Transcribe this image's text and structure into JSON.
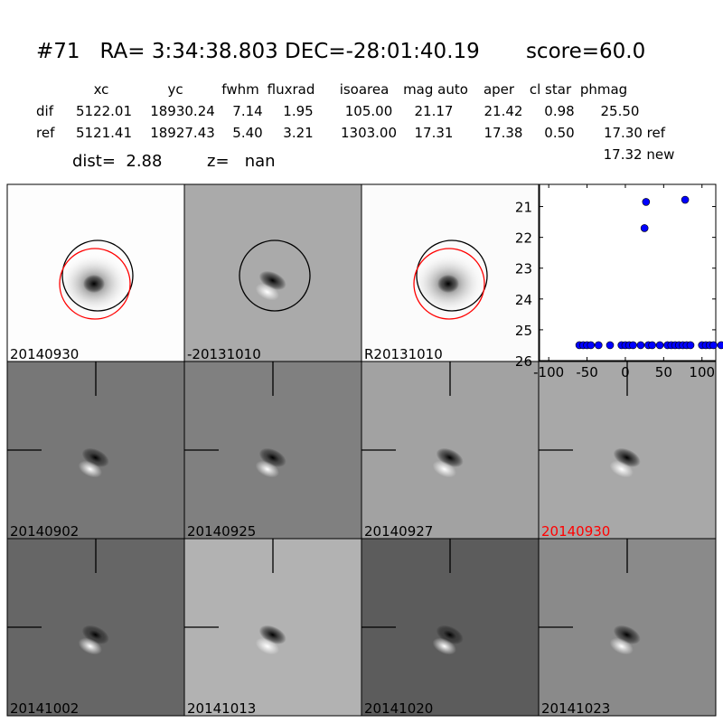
{
  "header": {
    "title": "#71   RA= 3:34:38.803 DEC=-28:01:40.19       score=60.0",
    "columns": [
      "xc",
      "yc",
      "fwhm",
      "fluxrad",
      "isoarea",
      "mag auto",
      "aper",
      "cl star",
      "phmag"
    ],
    "rows": [
      {
        "label": "dif",
        "values": [
          "5122.01",
          "18930.24",
          "7.14",
          "1.95",
          "105.00",
          "21.17",
          "21.42",
          "0.98",
          "25.50"
        ]
      },
      {
        "label": "ref",
        "values": [
          "5121.41",
          "18927.43",
          "5.40",
          "3.21",
          "1303.00",
          "17.31",
          "17.38",
          "0.50",
          "17.30 ref"
        ]
      }
    ],
    "extra": "17.32 new",
    "dist": "dist=  2.88",
    "z": "z=   nan"
  },
  "stamps": [
    "20140930",
    "-20131010",
    "R20131010",
    "20140902",
    "20140925",
    "20140927",
    "20140930",
    "20141002",
    "20141013",
    "20141020",
    "20141023"
  ],
  "chart_data": {
    "type": "scatter",
    "x": [
      -60,
      -55,
      -50,
      -45,
      -35,
      -20,
      -5,
      0,
      5,
      10,
      20,
      25,
      27,
      30,
      35,
      45,
      55,
      60,
      65,
      70,
      75,
      78,
      80,
      85,
      100,
      105,
      110,
      115,
      125
    ],
    "values": [
      25.5,
      25.5,
      25.5,
      25.5,
      25.5,
      25.5,
      25.5,
      25.5,
      25.5,
      25.5,
      25.5,
      21.7,
      20.85,
      25.5,
      25.5,
      25.5,
      25.5,
      25.5,
      25.5,
      25.5,
      25.5,
      20.78,
      25.5,
      25.5,
      25.5,
      25.5,
      25.5,
      25.5,
      25.5
    ],
    "errors": [
      null,
      null,
      null,
      null,
      null,
      null,
      null,
      null,
      null,
      null,
      null,
      0.12,
      0.05,
      null,
      null,
      null,
      null,
      null,
      null,
      null,
      null,
      0.05,
      null,
      null,
      null,
      null,
      null,
      null,
      null
    ],
    "color": "#0000ff",
    "xlim": [
      -112,
      118
    ],
    "ylim": [
      26,
      20.28
    ],
    "xticks": [
      -100,
      -50,
      0,
      50,
      100
    ],
    "yticks": [
      21,
      22,
      23,
      24,
      25,
      26
    ]
  }
}
